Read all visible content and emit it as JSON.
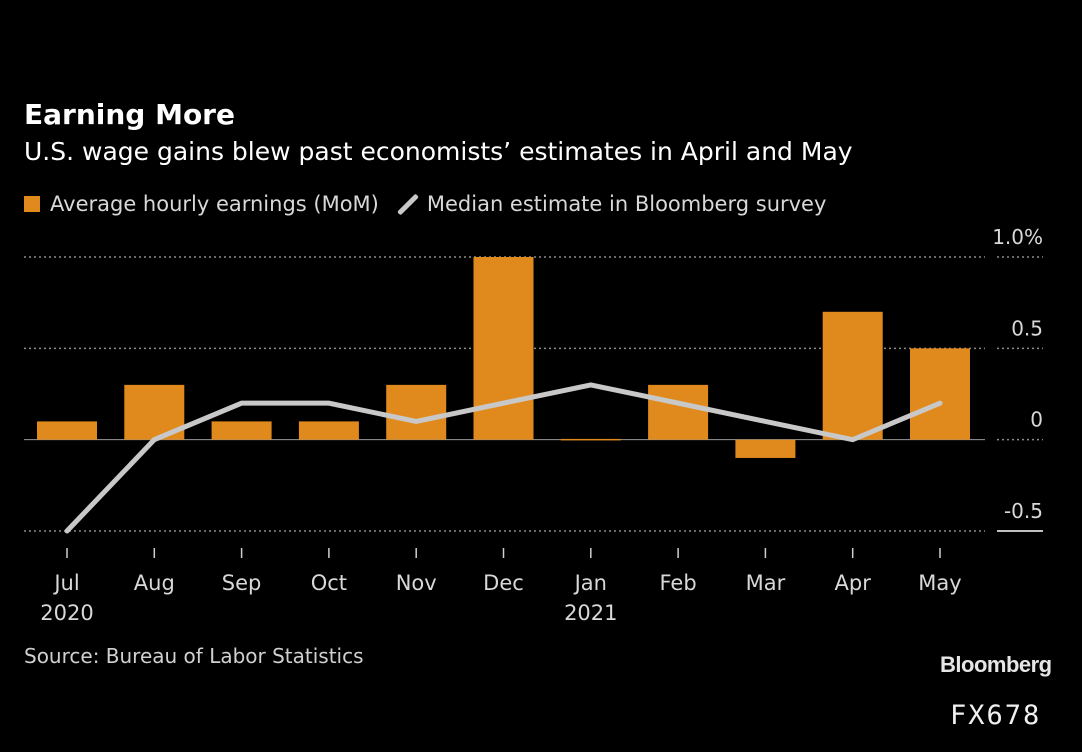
{
  "chart_data": {
    "type": "bar",
    "title": "Earning More",
    "subtitle": "U.S. wage gains blew past economists’ estimates in April and May",
    "categories": [
      "Jul",
      "Aug",
      "Sep",
      "Oct",
      "Nov",
      "Dec",
      "Jan",
      "Feb",
      "Mar",
      "Apr",
      "May"
    ],
    "year_labels": [
      "2020",
      "",
      "",
      "",
      "",
      "",
      "2021",
      "",
      "",
      "",
      ""
    ],
    "series": [
      {
        "name": "Average hourly earnings (MoM)",
        "type": "bar",
        "color": "#e08a1e",
        "values": [
          0.1,
          0.3,
          0.1,
          0.1,
          0.3,
          1.0,
          0.0,
          0.3,
          -0.1,
          0.7,
          0.5
        ]
      },
      {
        "name": "Median estimate in Bloomberg survey",
        "type": "line",
        "color": "#c8c8c8",
        "values": [
          -0.5,
          0.0,
          0.2,
          0.2,
          0.1,
          0.2,
          0.3,
          0.2,
          0.1,
          0.0,
          0.2
        ]
      }
    ],
    "ylim": [
      -0.5,
      1.0
    ],
    "yticks": [
      {
        "value": 1.0,
        "label": "1.0%"
      },
      {
        "value": 0.5,
        "label": "0.5"
      },
      {
        "value": 0,
        "label": "0"
      },
      {
        "value": -0.5,
        "label": "-0.5"
      }
    ],
    "grid": true,
    "legend": "top-left",
    "source": "Source: Bureau of Labor Statistics",
    "brand": "Bloomberg"
  },
  "watermark": "FX678"
}
